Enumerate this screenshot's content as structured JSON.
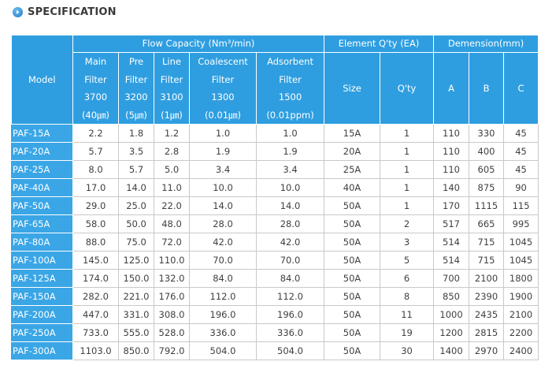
{
  "section_title": "SPECIFICATION",
  "icons": {
    "title_icon": "circle-arrow-right-icon"
  },
  "colors": {
    "header_bg": "#2f9ee0",
    "model_bg": "#3aa6e6",
    "border": "#c9c9c9"
  },
  "headers": {
    "model": "Model",
    "flow_capacity": "Flow Capacity (Nm³/min)",
    "element_qty": "Element Q'ty (EA)",
    "dimension": "Demension(mm)",
    "main_filter": [
      "Main",
      "Filter",
      "3700",
      "(40㎛)"
    ],
    "pre_filter": [
      "Pre",
      "Filter",
      "3200",
      "(5㎛)"
    ],
    "line_filter": [
      "Line",
      "Filter",
      "3100",
      "(1㎛)"
    ],
    "coalescent_filter": [
      "Coalescent",
      "Filter",
      "1300",
      "(0.01㎛)"
    ],
    "adsorbent_filter": [
      "Adsorbent",
      "Filter",
      "1500",
      "(0.01ppm)"
    ],
    "size": "Size",
    "qty": "Q'ty",
    "a": "A",
    "b": "B",
    "c": "C"
  },
  "rows": [
    [
      "PAF-15A",
      "2.2",
      "1.8",
      "1.2",
      "1.0",
      "1.0",
      "15A",
      "1",
      "110",
      "330",
      "45"
    ],
    [
      "PAF-20A",
      "5.7",
      "3.5",
      "2.8",
      "1.9",
      "1.9",
      "20A",
      "1",
      "110",
      "400",
      "45"
    ],
    [
      "PAF-25A",
      "8.0",
      "5.7",
      "5.0",
      "3.4",
      "3.4",
      "25A",
      "1",
      "110",
      "605",
      "45"
    ],
    [
      "PAF-40A",
      "17.0",
      "14.0",
      "11.0",
      "10.0",
      "10.0",
      "40A",
      "1",
      "140",
      "875",
      "90"
    ],
    [
      "PAF-50A",
      "29.0",
      "25.0",
      "22.0",
      "14.0",
      "14.0",
      "50A",
      "1",
      "170",
      "1115",
      "115"
    ],
    [
      "PAF-65A",
      "58.0",
      "50.0",
      "48.0",
      "28.0",
      "28.0",
      "50A",
      "2",
      "517",
      "665",
      "995"
    ],
    [
      "PAF-80A",
      "88.0",
      "75.0",
      "72.0",
      "42.0",
      "42.0",
      "50A",
      "3",
      "514",
      "715",
      "1045"
    ],
    [
      "PAF-100A",
      "145.0",
      "125.0",
      "110.0",
      "70.0",
      "70.0",
      "50A",
      "5",
      "514",
      "715",
      "1045"
    ],
    [
      "PAF-125A",
      "174.0",
      "150.0",
      "132.0",
      "84.0",
      "84.0",
      "50A",
      "6",
      "700",
      "2100",
      "1800"
    ],
    [
      "PAF-150A",
      "282.0",
      "221.0",
      "176.0",
      "112.0",
      "112.0",
      "50A",
      "8",
      "850",
      "2390",
      "1900"
    ],
    [
      "PAF-200A",
      "447.0",
      "331.0",
      "308.0",
      "196.0",
      "196.0",
      "50A",
      "11",
      "1000",
      "2435",
      "2100"
    ],
    [
      "PAF-250A",
      "733.0",
      "555.0",
      "528.0",
      "336.0",
      "336.0",
      "50A",
      "19",
      "1200",
      "2815",
      "2200"
    ],
    [
      "PAF-300A",
      "1103.0",
      "850.0",
      "792.0",
      "504.0",
      "504.0",
      "50A",
      "30",
      "1400",
      "2970",
      "2400"
    ]
  ]
}
